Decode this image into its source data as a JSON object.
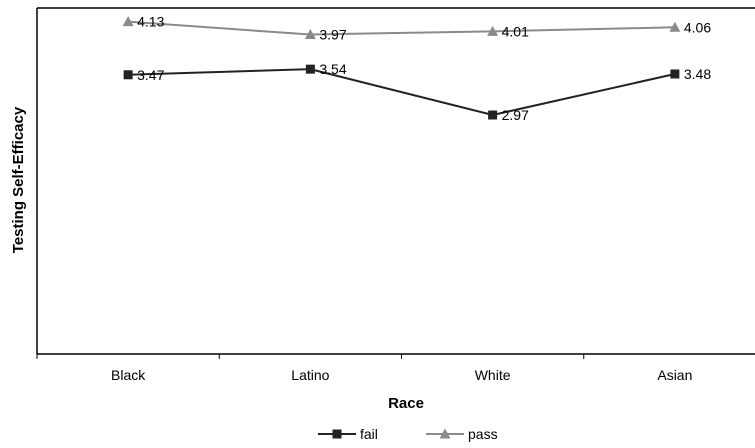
{
  "chart_data": {
    "type": "line",
    "xlabel": "Race",
    "ylabel": "Testing Self-Efficacy",
    "categories": [
      "Black",
      "Latino",
      "White",
      "Asian"
    ],
    "ylim": [
      0,
      4.3
    ],
    "grid": false,
    "legend_position": "bottom",
    "series": [
      {
        "name": "fail",
        "values": [
          3.47,
          3.54,
          2.97,
          3.48
        ],
        "labels": [
          "3.47",
          "3.54",
          "2.97",
          "3.48"
        ],
        "marker": "square",
        "color": "#222222"
      },
      {
        "name": "pass",
        "values": [
          4.13,
          3.97,
          4.01,
          4.06
        ],
        "labels": [
          "4.13",
          "3.97",
          "4.01",
          "4.06"
        ],
        "marker": "triangle",
        "color": "#8a8a8a"
      }
    ]
  }
}
